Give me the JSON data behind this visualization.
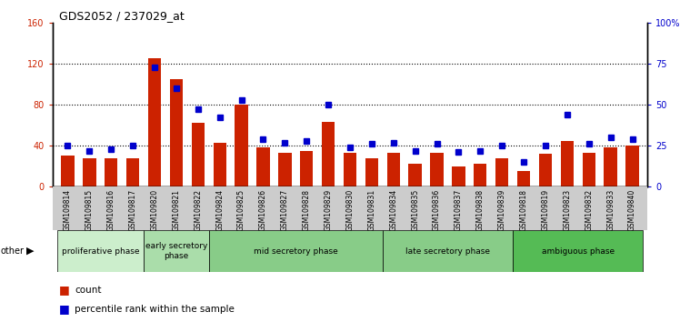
{
  "title": "GDS2052 / 237029_at",
  "samples": [
    "GSM109814",
    "GSM109815",
    "GSM109816",
    "GSM109817",
    "GSM109820",
    "GSM109821",
    "GSM109822",
    "GSM109824",
    "GSM109825",
    "GSM109826",
    "GSM109827",
    "GSM109828",
    "GSM109829",
    "GSM109830",
    "GSM109831",
    "GSM109834",
    "GSM109835",
    "GSM109836",
    "GSM109837",
    "GSM109838",
    "GSM109839",
    "GSM109818",
    "GSM109819",
    "GSM109823",
    "GSM109832",
    "GSM109833",
    "GSM109840"
  ],
  "counts": [
    30,
    28,
    28,
    28,
    125,
    105,
    62,
    43,
    80,
    38,
    33,
    35,
    63,
    33,
    28,
    33,
    22,
    33,
    20,
    22,
    28,
    15,
    32,
    45,
    33,
    38,
    40
  ],
  "percentiles": [
    25,
    22,
    23,
    25,
    73,
    60,
    47,
    42,
    53,
    29,
    27,
    28,
    50,
    24,
    26,
    27,
    22,
    26,
    21,
    22,
    25,
    15,
    25,
    44,
    26,
    30,
    29
  ],
  "bar_color": "#cc2200",
  "dot_color": "#0000cc",
  "ylim_left": [
    0,
    160
  ],
  "yticks_left": [
    0,
    40,
    80,
    120,
    160
  ],
  "ytick_labels_left": [
    "0",
    "40",
    "80",
    "120",
    "160"
  ],
  "ytick_labels_right": [
    "0",
    "25",
    "50",
    "75",
    "100%"
  ],
  "phase_defs": [
    {
      "label": "proliferative phase",
      "start": 0,
      "end": 4,
      "color": "#cceecc"
    },
    {
      "label": "early secretory\nphase",
      "start": 4,
      "end": 7,
      "color": "#aaddaa"
    },
    {
      "label": "mid secretory phase",
      "start": 7,
      "end": 15,
      "color": "#88cc88"
    },
    {
      "label": "late secretory phase",
      "start": 15,
      "end": 21,
      "color": "#88cc88"
    },
    {
      "label": "ambiguous phase",
      "start": 21,
      "end": 27,
      "color": "#55bb55"
    }
  ],
  "tick_bg_color": "#cccccc",
  "plot_bg_color": "#ffffff"
}
